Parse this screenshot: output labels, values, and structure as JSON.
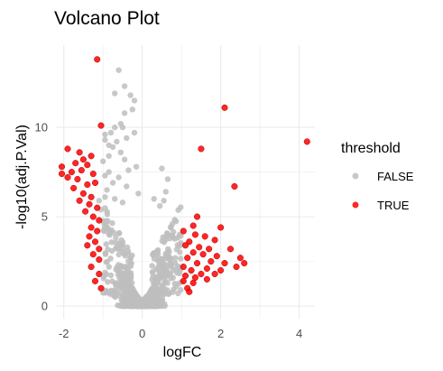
{
  "chart_data": {
    "type": "scatter",
    "title": "Volcano Plot",
    "xlabel": "logFC",
    "ylabel": "-log10(adj.P.Val)",
    "xlim": [
      -2.2,
      4.4
    ],
    "ylim": [
      -0.7,
      14.6
    ],
    "x_ticks": [
      -2,
      0,
      2,
      4
    ],
    "y_ticks": [
      0,
      5,
      10
    ],
    "grid": true,
    "legend_position": "right",
    "legend_title": "threshold",
    "colors": {
      "FALSE": "#bebebe",
      "TRUE": "#ff0000",
      "grid": "#ebebeb"
    },
    "series": [
      {
        "name": "FALSE",
        "points": [
          [
            -0.6,
            13.2
          ],
          [
            -0.45,
            12.3
          ],
          [
            -0.7,
            11.9
          ],
          [
            -0.3,
            11.8
          ],
          [
            -0.2,
            11.5
          ],
          [
            -0.25,
            11.0
          ],
          [
            -0.45,
            10.8
          ],
          [
            -0.55,
            10.2
          ],
          [
            -0.7,
            10.0
          ],
          [
            -0.5,
            10.0
          ],
          [
            -0.95,
            9.6
          ],
          [
            -0.8,
            9.7
          ],
          [
            -0.95,
            9.3
          ],
          [
            -0.85,
            9.0
          ],
          [
            -0.2,
            9.7
          ],
          [
            -0.4,
            9.4
          ],
          [
            -0.65,
            9.2
          ],
          [
            -0.75,
            8.9
          ],
          [
            -0.55,
            8.6
          ],
          [
            -0.45,
            8.2
          ],
          [
            -0.85,
            8.4
          ],
          [
            -1.0,
            8.1
          ],
          [
            -0.15,
            7.8
          ],
          [
            -0.35,
            7.6
          ],
          [
            -0.85,
            7.5
          ],
          [
            -0.95,
            7.3
          ],
          [
            -0.6,
            7.2
          ],
          [
            -0.75,
            6.9
          ],
          [
            -0.4,
            6.7
          ],
          [
            -0.9,
            6.5
          ],
          [
            -0.95,
            6.1
          ],
          [
            -0.1,
            6.3
          ],
          [
            0.5,
            7.7
          ],
          [
            0.65,
            7.1
          ],
          [
            0.6,
            6.4
          ],
          [
            0.3,
            6.0
          ],
          [
            0.55,
            5.9
          ],
          [
            0.45,
            5.6
          ],
          [
            -1.1,
            5.9
          ],
          [
            -1.05,
            5.4
          ],
          [
            -0.7,
            6.0
          ],
          [
            -0.5,
            5.8
          ]
        ],
        "cluster_summary": "dense cloud of additional FALSE points for |logFC| < 1, -log10(adj.P.Val) 0 to 6, densest near (0, 0.5)"
      },
      {
        "name": "TRUE",
        "points": [
          [
            -1.15,
            13.8
          ],
          [
            -1.05,
            10.1
          ],
          [
            -1.9,
            8.8
          ],
          [
            -1.6,
            8.6
          ],
          [
            -1.5,
            8.2
          ],
          [
            -1.3,
            8.4
          ],
          [
            -1.7,
            8.0
          ],
          [
            -1.4,
            7.9
          ],
          [
            -2.05,
            7.8
          ],
          [
            -1.8,
            7.5
          ],
          [
            -1.55,
            7.6
          ],
          [
            -1.25,
            7.4
          ],
          [
            -2.05,
            7.4
          ],
          [
            -1.9,
            7.2
          ],
          [
            -1.65,
            7.1
          ],
          [
            -1.4,
            6.8
          ],
          [
            -1.2,
            6.9
          ],
          [
            -1.75,
            6.6
          ],
          [
            -1.5,
            6.3
          ],
          [
            -1.3,
            6.1
          ],
          [
            -1.6,
            5.9
          ],
          [
            -1.35,
            5.7
          ],
          [
            -1.15,
            5.5
          ],
          [
            -1.45,
            5.3
          ],
          [
            -1.25,
            5.0
          ],
          [
            -1.1,
            4.8
          ],
          [
            -1.3,
            4.4
          ],
          [
            -1.15,
            4.2
          ],
          [
            -1.35,
            3.9
          ],
          [
            -1.2,
            3.6
          ],
          [
            -1.4,
            3.4
          ],
          [
            -1.1,
            3.2
          ],
          [
            -1.25,
            2.9
          ],
          [
            -1.1,
            2.6
          ],
          [
            -1.3,
            2.2
          ],
          [
            -1.1,
            1.8
          ],
          [
            -1.2,
            1.4
          ],
          [
            -1.05,
            1.0
          ],
          [
            2.1,
            11.1
          ],
          [
            4.2,
            9.2
          ],
          [
            1.5,
            8.8
          ],
          [
            2.35,
            6.7
          ],
          [
            1.4,
            5.0
          ],
          [
            1.3,
            4.5
          ],
          [
            1.05,
            4.2
          ],
          [
            2.0,
            4.4
          ],
          [
            1.35,
            4.0
          ],
          [
            1.6,
            3.9
          ],
          [
            1.2,
            3.6
          ],
          [
            1.85,
            3.7
          ],
          [
            1.45,
            3.3
          ],
          [
            1.1,
            3.4
          ],
          [
            1.7,
            3.2
          ],
          [
            2.25,
            3.2
          ],
          [
            1.3,
            3.0
          ],
          [
            1.55,
            2.9
          ],
          [
            1.9,
            2.8
          ],
          [
            2.5,
            2.7
          ],
          [
            1.15,
            2.7
          ],
          [
            1.75,
            2.5
          ],
          [
            2.1,
            2.4
          ],
          [
            2.6,
            2.4
          ],
          [
            1.4,
            2.4
          ],
          [
            1.05,
            2.2
          ],
          [
            1.65,
            2.1
          ],
          [
            2.0,
            2.0
          ],
          [
            2.4,
            2.2
          ],
          [
            1.25,
            2.0
          ],
          [
            1.5,
            1.8
          ],
          [
            1.85,
            1.8
          ],
          [
            1.1,
            1.7
          ],
          [
            1.35,
            1.6
          ],
          [
            1.65,
            1.5
          ],
          [
            1.05,
            1.4
          ],
          [
            1.3,
            1.3
          ],
          [
            1.15,
            1.0
          ],
          [
            1.2,
            0.8
          ]
        ]
      }
    ]
  }
}
